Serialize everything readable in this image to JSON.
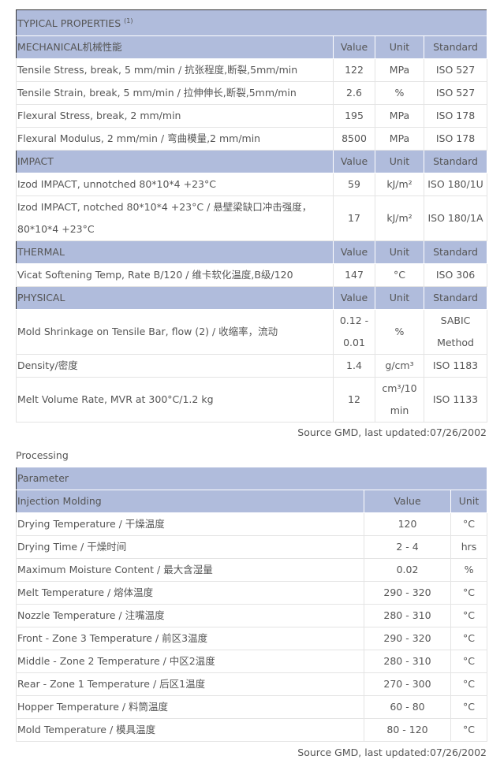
{
  "properties": {
    "title": "TYPICAL PROPERTIES",
    "title_note": "(1)",
    "sections": [
      {
        "name": "MECHANICAL机械性能",
        "headers": [
          "Value",
          "Unit",
          "Standard"
        ],
        "rows": [
          [
            "Tensile Stress, break, 5 mm/min / 抗张程度,断裂,5mm/min",
            "122",
            "MPa",
            "ISO 527"
          ],
          [
            "Tensile Strain, break, 5 mm/min / 拉伸伸长,断裂,5mm/min",
            "2.6",
            "%",
            "ISO 527"
          ],
          [
            "Flexural Stress, break, 2 mm/min",
            "195",
            "MPa",
            "ISO 178"
          ],
          [
            "Flexural Modulus, 2 mm/min / 弯曲模量,2 mm/min",
            "8500",
            "MPa",
            "ISO 178"
          ]
        ]
      },
      {
        "name": "IMPACT",
        "headers": [
          "Value",
          "Unit",
          "Standard"
        ],
        "rows": [
          [
            "Izod IMPACT, unnotched 80*10*4 +23°C",
            "59",
            "kJ/m²",
            "ISO 180/1U"
          ],
          [
            "Izod IMPACT, notched 80*10*4 +23°C / 悬壁梁缺口冲击强度，80*10*4 +23°C",
            "17",
            "kJ/m²",
            "ISO 180/1A"
          ]
        ]
      },
      {
        "name": "THERMAL",
        "headers": [
          "Value",
          "Unit",
          "Standard"
        ],
        "rows": [
          [
            "Vicat Softening Temp, Rate B/120 / 维卡软化温度,B级/120",
            "147",
            "°C",
            "ISO 306"
          ]
        ]
      },
      {
        "name": "PHYSICAL",
        "headers": [
          "Value",
          "Unit",
          "Standard"
        ],
        "rows": [
          [
            "Mold Shrinkage on Tensile Bar, flow (2) / 收缩率，流动",
            "0.12 - 0.01",
            "%",
            "SABIC Method"
          ],
          [
            "Density/密度",
            "1.4",
            "g/cm³",
            "ISO 1183"
          ],
          [
            "Melt Volume Rate, MVR at 300°C/1.2 kg",
            "12",
            "cm³/10 min",
            "ISO 1133"
          ]
        ]
      }
    ],
    "source": "Source GMD, last updated:07/26/2002"
  },
  "processing": {
    "label": "Processing",
    "parameter_header": "Parameter",
    "section": "Injection Molding",
    "headers": [
      "Value",
      "Unit"
    ],
    "rows": [
      [
        "Drying Temperature / 干燥温度",
        "120",
        "°C"
      ],
      [
        "Drying Time / 干燥时间",
        "2 - 4",
        "hrs"
      ],
      [
        "Maximum Moisture Content / 最大含湿量",
        "0.02",
        "%"
      ],
      [
        "Melt Temperature / 熔体温度",
        "290 - 320",
        "°C"
      ],
      [
        "Nozzle Temperature / 注嘴温度",
        "280 - 310",
        "°C"
      ],
      [
        "Front - Zone 3 Temperature / 前区3温度",
        "290 - 320",
        "°C"
      ],
      [
        "Middle - Zone 2 Temperature / 中区2温度",
        "280 - 310",
        "°C"
      ],
      [
        "Rear - Zone 1 Temperature / 后区1温度",
        "270 - 300",
        "°C"
      ],
      [
        "Hopper Temperature / 料筒温度",
        "60 - 80",
        "°C"
      ],
      [
        "Mold Temperature / 模具温度",
        "80 - 120",
        "°C"
      ]
    ],
    "source": "Source GMD, last updated:07/26/2002"
  },
  "colors": {
    "header_bg": "#b0bcdc",
    "text": "#555555",
    "border": "#333333"
  }
}
